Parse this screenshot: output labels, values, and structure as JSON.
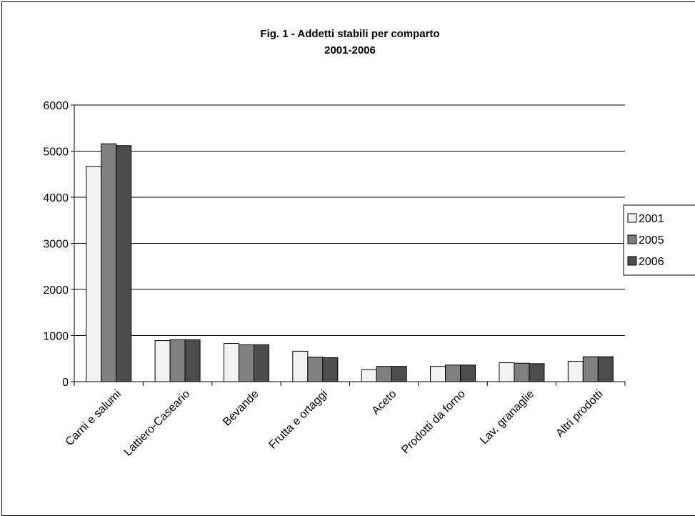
{
  "chart_data": {
    "type": "bar",
    "title": "Fig. 1 - Addetti stabili per comparto",
    "subtitle": "2001-2006",
    "categories": [
      "Carni e salumi",
      "Lattiero-Caseario",
      "Bevande",
      "Frutta e ortaggi",
      "Aceto",
      "Prodotti da forno",
      "Lav. granaglie",
      "Altri prodotti"
    ],
    "series": [
      {
        "name": "2001",
        "color": "#f2f2f2",
        "values": [
          4670,
          890,
          830,
          660,
          260,
          330,
          410,
          440
        ]
      },
      {
        "name": "2005",
        "color": "#808080",
        "values": [
          5160,
          910,
          800,
          530,
          330,
          360,
          400,
          540
        ]
      },
      {
        "name": "2006",
        "color": "#4d4d4d",
        "values": [
          5120,
          910,
          800,
          520,
          330,
          360,
          390,
          540
        ]
      }
    ],
    "ylim": [
      0,
      6000
    ],
    "yticks": [
      0,
      1000,
      2000,
      3000,
      4000,
      5000,
      6000
    ],
    "xlabel": "",
    "ylabel": "",
    "grid": true,
    "legend": "right"
  }
}
